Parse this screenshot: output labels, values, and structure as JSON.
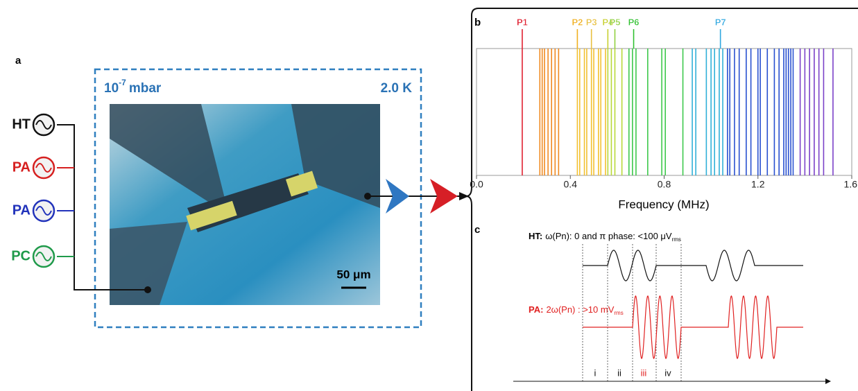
{
  "panel_a": {
    "label": "a",
    "pressure": {
      "base": "10",
      "exponent": "-7",
      "unit": "mbar"
    },
    "temperature": "2.0 K",
    "scale_bar": "50 μm",
    "sources": [
      {
        "label": "HT",
        "color": "#111111"
      },
      {
        "label": "PA",
        "color": "#d62020"
      },
      {
        "label": "PA",
        "color": "#2233bb"
      },
      {
        "label": "PC",
        "color": "#1f9a4a"
      }
    ]
  },
  "panel_b": {
    "label": "b",
    "chart_data": {
      "type": "spectrum",
      "xlabel": "Frequency (MHz)",
      "xlim": [
        0,
        1.6
      ],
      "xticks": [
        {
          "value": 0,
          "label": "0.0"
        },
        {
          "value": 0.4,
          "label": "0.4"
        },
        {
          "value": 0.8,
          "label": "0.8"
        },
        {
          "value": 1.2,
          "label": "1.2"
        },
        {
          "value": 1.6,
          "label": "1.6"
        }
      ],
      "peaks": [
        {
          "label": "P1",
          "value": 0.195,
          "color": "#e02030"
        },
        {
          "label": "P2",
          "value": 0.43,
          "color": "#f0b020"
        },
        {
          "label": "P3",
          "value": 0.49,
          "color": "#e8c040"
        },
        {
          "label": "P4",
          "value": 0.56,
          "color": "#c8d030"
        },
        {
          "label": "P5",
          "value": 0.59,
          "color": "#90d040"
        },
        {
          "label": "P6",
          "value": 0.67,
          "color": "#30c030"
        },
        {
          "label": "P7",
          "value": 1.04,
          "color": "#30a8e0"
        }
      ],
      "lines": [
        {
          "color": "#e02030",
          "values": [
            0.195
          ]
        },
        {
          "color": "#f08a20",
          "values": [
            0.27,
            0.28,
            0.29,
            0.305,
            0.32,
            0.335,
            0.35
          ]
        },
        {
          "color": "#f2c030",
          "values": [
            0.43,
            0.44,
            0.46,
            0.47,
            0.49,
            0.5,
            0.52,
            0.53,
            0.55
          ]
        },
        {
          "color": "#b8d838",
          "values": [
            0.56,
            0.575,
            0.59,
            0.62
          ]
        },
        {
          "color": "#3cc84a",
          "values": [
            0.65,
            0.665,
            0.68,
            0.73,
            0.79,
            0.805,
            0.88
          ]
        },
        {
          "color": "#30b0d8",
          "values": [
            0.92,
            0.935,
            0.98,
            1.0,
            1.015,
            1.035,
            1.05
          ]
        },
        {
          "color": "#2850d0",
          "values": [
            1.07,
            1.08,
            1.1,
            1.12,
            1.15,
            1.17,
            1.2,
            1.21,
            1.24,
            1.27,
            1.29,
            1.31,
            1.32,
            1.33,
            1.34,
            1.35
          ]
        },
        {
          "color": "#7a40c8",
          "values": [
            1.38,
            1.4,
            1.42,
            1.44,
            1.46,
            1.48,
            1.52
          ]
        }
      ]
    }
  },
  "panel_c": {
    "label": "c",
    "ht": {
      "label": "HT:",
      "text": "ω(Pn): 0 and π phase: <100 μV",
      "subscript": "rms",
      "color": "#111111"
    },
    "pa": {
      "label": "PA:",
      "text": "2ω(Pn) : >10 mV",
      "subscript": "rms",
      "color": "#e02020"
    },
    "phases": [
      {
        "label": "i",
        "color": "#111111"
      },
      {
        "label": "ii",
        "color": "#111111"
      },
      {
        "label": "iii",
        "color": "#e02020"
      },
      {
        "label": "iv",
        "color": "#111111"
      }
    ]
  }
}
